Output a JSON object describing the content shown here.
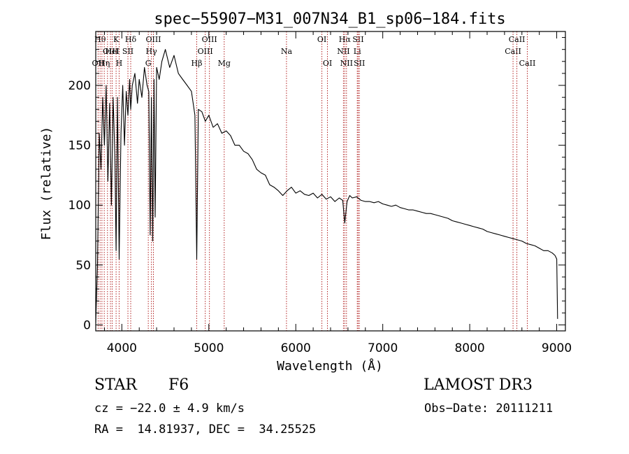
{
  "chart_data": {
    "type": "line",
    "title": "spec−55907−M31_007N34_B1_sp06−184.fits",
    "xlabel": "Wavelength (Å)",
    "ylabel": "Flux (relative)",
    "xlim": [
      3700,
      9100
    ],
    "ylim": [
      -5,
      245
    ],
    "xticks": [
      4000,
      5000,
      6000,
      7000,
      8000,
      9000
    ],
    "yticks": [
      0,
      50,
      100,
      150,
      200
    ],
    "series": [
      {
        "name": "spectrum",
        "color": "#000000",
        "x": [
          3700,
          3720,
          3740,
          3760,
          3780,
          3800,
          3820,
          3840,
          3860,
          3880,
          3900,
          3920,
          3934,
          3950,
          3969,
          3990,
          4010,
          4030,
          4050,
          4070,
          4090,
          4102,
          4120,
          4150,
          4180,
          4200,
          4230,
          4260,
          4290,
          4310,
          4326,
          4340,
          4355,
          4370,
          4383,
          4400,
          4430,
          4460,
          4500,
          4550,
          4600,
          4650,
          4700,
          4750,
          4800,
          4840,
          4861,
          4880,
          4920,
          4960,
          5000,
          5050,
          5100,
          5150,
          5200,
          5250,
          5300,
          5350,
          5400,
          5450,
          5500,
          5550,
          5600,
          5650,
          5700,
          5750,
          5800,
          5850,
          5900,
          5950,
          6000,
          6050,
          6100,
          6150,
          6200,
          6250,
          6300,
          6350,
          6400,
          6450,
          6500,
          6540,
          6563,
          6590,
          6620,
          6650,
          6700,
          6750,
          6800,
          6850,
          6900,
          6950,
          7000,
          7050,
          7100,
          7150,
          7200,
          7250,
          7300,
          7350,
          7400,
          7450,
          7500,
          7550,
          7600,
          7650,
          7700,
          7750,
          7800,
          7850,
          7900,
          7950,
          8000,
          8050,
          8100,
          8150,
          8200,
          8250,
          8300,
          8350,
          8400,
          8450,
          8500,
          8550,
          8600,
          8650,
          8700,
          8750,
          8800,
          8850,
          8900,
          8950,
          8980,
          9000,
          9010
        ],
        "y": [
          2,
          50,
          160,
          130,
          190,
          150,
          200,
          120,
          185,
          100,
          190,
          140,
          62,
          190,
          55,
          160,
          200,
          150,
          195,
          175,
          205,
          180,
          200,
          210,
          185,
          205,
          190,
          215,
          200,
          195,
          75,
          190,
          70,
          205,
          90,
          215,
          205,
          220,
          230,
          215,
          225,
          210,
          205,
          200,
          195,
          175,
          55,
          180,
          178,
          170,
          175,
          165,
          168,
          160,
          162,
          158,
          150,
          150,
          145,
          143,
          138,
          130,
          127,
          125,
          117,
          115,
          112,
          108,
          112,
          115,
          110,
          112,
          109,
          108,
          110,
          106,
          109,
          105,
          107,
          103,
          106,
          104,
          85,
          103,
          108,
          106,
          107,
          104,
          103,
          103,
          102,
          103,
          101,
          100,
          99,
          100,
          98,
          97,
          96,
          96,
          95,
          94,
          93,
          93,
          92,
          91,
          90,
          89,
          87,
          86,
          85,
          84,
          83,
          82,
          81,
          80,
          78,
          77,
          76,
          75,
          74,
          73,
          72,
          71,
          70,
          68,
          67,
          66,
          64,
          62,
          62,
          60,
          58,
          55,
          5
        ]
      }
    ],
    "line_markers": [
      {
        "wavelength": 3727,
        "row": 2,
        "label": "OII"
      },
      {
        "wavelength": 3750,
        "row": 0,
        "label": "Hθ"
      },
      {
        "wavelength": 3771,
        "row": 0,
        "label": ""
      },
      {
        "wavelength": 3798,
        "row": 2,
        "label": "Hη"
      },
      {
        "wavelength": 3835,
        "row": 1,
        "label": ""
      },
      {
        "wavelength": 3869,
        "row": 1,
        "label": "OIII"
      },
      {
        "wavelength": 3889,
        "row": 1,
        "label": "HeI"
      },
      {
        "wavelength": 3934,
        "row": 0,
        "label": "K"
      },
      {
        "wavelength": 3969,
        "row": 2,
        "label": "H"
      },
      {
        "wavelength": 4070,
        "row": 1,
        "label": "SII"
      },
      {
        "wavelength": 4102,
        "row": 0,
        "label": "Hδ"
      },
      {
        "wavelength": 4304,
        "row": 2,
        "label": "G"
      },
      {
        "wavelength": 4340,
        "row": 1,
        "label": "Hγ"
      },
      {
        "wavelength": 4363,
        "row": 0,
        "label": "OIII"
      },
      {
        "wavelength": 4861,
        "row": 2,
        "label": "Hβ"
      },
      {
        "wavelength": 4959,
        "row": 1,
        "label": "OIII"
      },
      {
        "wavelength": 5007,
        "row": 0,
        "label": "OIII"
      },
      {
        "wavelength": 5177,
        "row": 2,
        "label": "Mg"
      },
      {
        "wavelength": 5893,
        "row": 1,
        "label": "Na"
      },
      {
        "wavelength": 6300,
        "row": 0,
        "label": "OI"
      },
      {
        "wavelength": 6364,
        "row": 2,
        "label": "OI"
      },
      {
        "wavelength": 6548,
        "row": 1,
        "label": "NII"
      },
      {
        "wavelength": 6563,
        "row": 0,
        "label": "Hα"
      },
      {
        "wavelength": 6583,
        "row": 2,
        "label": "NII"
      },
      {
        "wavelength": 6707,
        "row": 1,
        "label": "Li"
      },
      {
        "wavelength": 6717,
        "row": 0,
        "label": "SII"
      },
      {
        "wavelength": 6731,
        "row": 2,
        "label": "SII"
      },
      {
        "wavelength": 8498,
        "row": 1,
        "label": "CaII"
      },
      {
        "wavelength": 8542,
        "row": 0,
        "label": "CaII"
      },
      {
        "wavelength": 8662,
        "row": 2,
        "label": "CaII"
      }
    ],
    "marker_color": "#b22222"
  },
  "info": {
    "object_class": "STAR",
    "subclass": "F6",
    "survey": "LAMOST DR3",
    "redshift": "cz = −22.0 ± 4.9 km/s",
    "obs_date": "Obs−Date: 20111211",
    "coords": "RA =  14.81937, DEC =  34.25525"
  }
}
